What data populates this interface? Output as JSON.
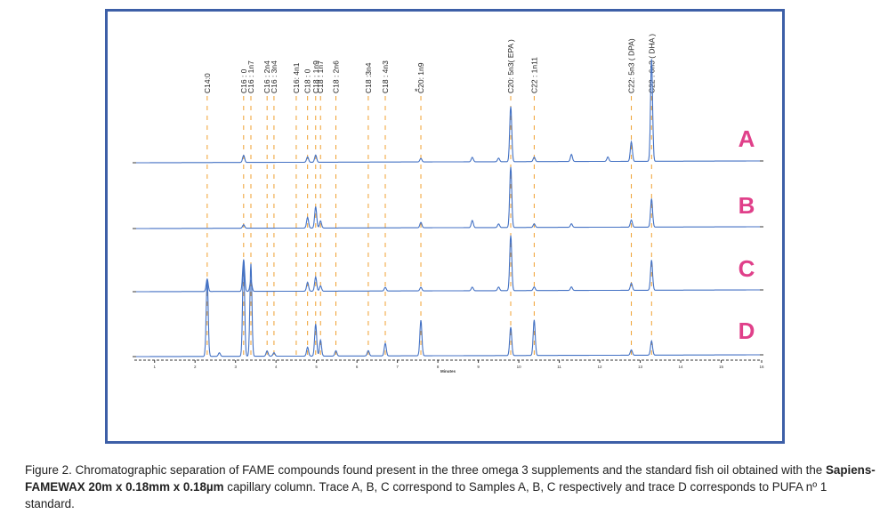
{
  "chart_data": {
    "type": "line",
    "xlabel": "Minutes",
    "x_ticks": [
      1,
      2,
      3,
      4,
      5,
      6,
      7,
      8,
      9,
      10,
      11,
      12,
      13,
      14,
      15,
      16
    ],
    "xlim": [
      0.5,
      16
    ],
    "peak_markers": [
      {
        "label": "C14:0",
        "x": 2.3
      },
      {
        "label": "C16 : 0",
        "x": 3.2
      },
      {
        "label": "C16 : 1n7",
        "x": 3.38
      },
      {
        "label": "C16 : 2n4",
        "x": 3.78
      },
      {
        "label": "C16 : 3n4",
        "x": 3.95
      },
      {
        "label": "C16: 4n1",
        "x": 4.5
      },
      {
        "label": "C18 : 0",
        "x": 4.78
      },
      {
        "label": "C18 : 1n9",
        "x": 4.98
      },
      {
        "label": "C18 : 1n7",
        "x": 5.1
      },
      {
        "label": "C18 : 2n6",
        "x": 5.48
      },
      {
        "label": "C18 :3n4",
        "x": 6.28
      },
      {
        "label": "C18 : 4n3",
        "x": 6.7
      },
      {
        "label": "C20: 1n9",
        "x": 7.58
      },
      {
        "label": "C20: 5n3( EPA )",
        "x": 9.8
      },
      {
        "label": "C22 : 1n11",
        "x": 10.38
      },
      {
        "label": "C22: 5n3 ( DPA)",
        "x": 12.78
      },
      {
        "label": "C22 : 6n3 ( DHA )",
        "x": 13.28
      }
    ],
    "asterisk": "*",
    "series": [
      {
        "name": "A",
        "color": "#4472c4",
        "peaks": [
          [
            3.2,
            8
          ],
          [
            4.78,
            6
          ],
          [
            4.98,
            8
          ],
          [
            7.58,
            4
          ],
          [
            8.85,
            5
          ],
          [
            9.5,
            4
          ],
          [
            9.8,
            62
          ],
          [
            10.38,
            5
          ],
          [
            11.3,
            8
          ],
          [
            12.2,
            5
          ],
          [
            12.78,
            22
          ],
          [
            13.28,
            115
          ]
        ]
      },
      {
        "name": "B",
        "color": "#4472c4",
        "peaks": [
          [
            3.2,
            4
          ],
          [
            4.78,
            12
          ],
          [
            4.98,
            24
          ],
          [
            5.1,
            8
          ],
          [
            7.58,
            6
          ],
          [
            8.85,
            8
          ],
          [
            9.5,
            4
          ],
          [
            9.8,
            68
          ],
          [
            10.38,
            4
          ],
          [
            11.3,
            4
          ],
          [
            12.78,
            8
          ],
          [
            13.28,
            32
          ]
        ]
      },
      {
        "name": "C",
        "color": "#4472c4",
        "peaks": [
          [
            2.3,
            14
          ],
          [
            3.2,
            36
          ],
          [
            3.38,
            12
          ],
          [
            4.78,
            10
          ],
          [
            4.98,
            16
          ],
          [
            5.1,
            6
          ],
          [
            6.7,
            4
          ],
          [
            7.58,
            4
          ],
          [
            8.85,
            4
          ],
          [
            9.5,
            4
          ],
          [
            9.8,
            62
          ],
          [
            10.38,
            4
          ],
          [
            11.3,
            4
          ],
          [
            12.78,
            8
          ],
          [
            13.28,
            34
          ]
        ]
      },
      {
        "name": "D",
        "color": "#4472c4",
        "peaks": [
          [
            2.3,
            87
          ],
          [
            2.6,
            4
          ],
          [
            3.2,
            107
          ],
          [
            3.38,
            104
          ],
          [
            3.78,
            6
          ],
          [
            3.95,
            4
          ],
          [
            4.78,
            10
          ],
          [
            4.98,
            36
          ],
          [
            5.1,
            18
          ],
          [
            5.48,
            6
          ],
          [
            6.28,
            6
          ],
          [
            6.7,
            14
          ],
          [
            7.58,
            40
          ],
          [
            9.8,
            32
          ],
          [
            10.38,
            40
          ],
          [
            12.78,
            6
          ],
          [
            13.28,
            16
          ]
        ]
      }
    ]
  },
  "caption": {
    "prefix": "Figure 2. Chromatographic separation of FAME compounds found present in the three omega 3 supplements and the standard fish oil obtained with the ",
    "bold": "Sapiens-FAMEWAX 20m x 0.18mm x 0.18µm",
    "suffix": " capillary column. Trace A, B, C correspond to Samples A, B, C respectively and trace D corresponds to PUFA nº 1 standard."
  }
}
